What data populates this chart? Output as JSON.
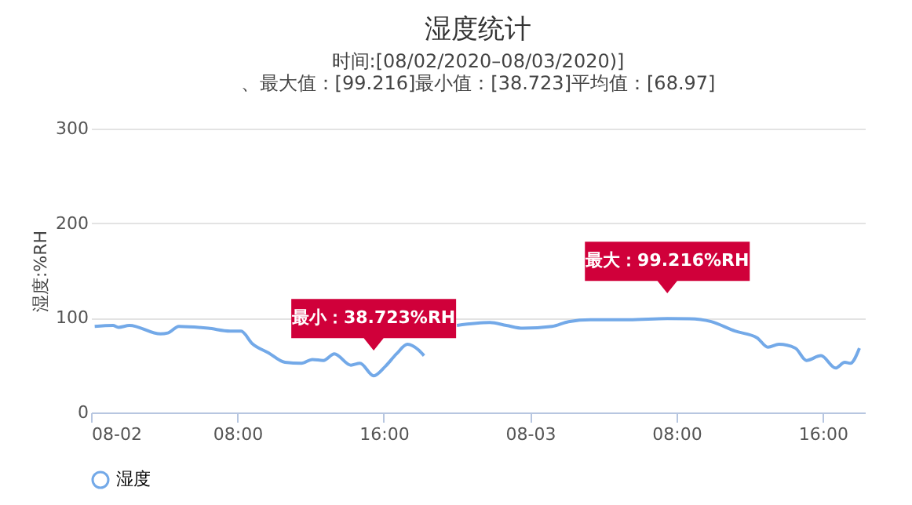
{
  "chart_data": {
    "type": "line",
    "title": "湿度统计",
    "subtitle": "时间:[08/02/2020–08/03/2020)]\n、最大值：[99.216]最小值：[38.723]平均值：[68.97]",
    "ylabel": "湿度:%RH",
    "x": [
      "2020-08-02T00:12",
      "2020-08-02T01:12",
      "2020-08-02T01:30",
      "2020-08-02T02:06",
      "2020-08-02T03:48",
      "2020-08-02T04:12",
      "2020-08-02T04:48",
      "2020-08-02T06:24",
      "2020-08-02T07:36",
      "2020-08-02T08:12",
      "2020-08-02T08:48",
      "2020-08-02T09:42",
      "2020-08-02T10:36",
      "2020-08-02T11:30",
      "2020-08-02T12:06",
      "2020-08-02T12:42",
      "2020-08-02T13:18",
      "2020-08-02T14:12",
      "2020-08-02T14:42",
      "2020-08-02T15:27",
      "2020-08-02T16:06",
      "2020-08-02T16:42",
      "2020-08-02T17:18",
      "2020-08-02T17:54",
      "2020-08-02T18:12",
      "2020-08-02T18:48",
      "2020-08-02T20:00",
      "2020-08-02T21:48",
      "2020-08-02T22:42",
      "2020-08-02T23:36",
      "2020-08-03T01:12",
      "2020-08-03T02:06",
      "2020-08-03T03:18",
      "2020-08-03T04:12",
      "2020-08-03T05:24",
      "2020-08-03T07:30",
      "2020-08-03T08:42",
      "2020-08-03T09:54",
      "2020-08-03T11:12",
      "2020-08-03T12:24",
      "2020-08-03T13:00",
      "2020-08-03T13:36",
      "2020-08-03T14:30",
      "2020-08-03T15:06",
      "2020-08-03T15:54",
      "2020-08-03T16:42",
      "2020-08-03T17:12",
      "2020-08-03T17:30",
      "2020-08-03T18:00"
    ],
    "series": [
      {
        "name": "湿度",
        "color": "#73a9e8",
        "values": [
          91,
          92,
          90,
          92,
          83,
          84,
          91,
          89,
          86,
          86,
          73,
          63,
          53,
          52,
          56,
          55,
          62,
          50,
          52,
          38.723,
          49,
          62,
          72,
          66,
          60,
          null,
          92,
          95,
          92,
          89,
          91,
          96,
          98,
          98,
          98,
          99.216,
          99,
          96,
          86,
          79,
          69,
          72,
          68,
          55,
          60,
          47,
          53,
          52,
          68
        ]
      }
    ],
    "xlim": [
      "2020-08-02T00:00",
      "2020-08-03T18:18"
    ],
    "xticks": [
      {
        "value": "2020-08-02T00:00",
        "label": "08-02"
      },
      {
        "value": "2020-08-02T08:00",
        "label": "08:00"
      },
      {
        "value": "2020-08-02T16:00",
        "label": "16:00"
      },
      {
        "value": "2020-08-03T00:00",
        "label": "08-03"
      },
      {
        "value": "2020-08-03T08:00",
        "label": "08:00"
      },
      {
        "value": "2020-08-03T16:00",
        "label": "16:00"
      }
    ],
    "ylim": [
      0,
      300
    ],
    "yticks": [
      0,
      100,
      200,
      300
    ],
    "grid": "y",
    "legend": "bottom",
    "marker": "none",
    "line_style": "solid",
    "annotations": [
      {
        "text": "最小：38.723%RH",
        "x": "2020-08-02T15:27",
        "y": 38.723
      },
      {
        "text": "最大：99.216%RH",
        "x": "2020-08-03T07:30",
        "y": 99.216
      }
    ]
  }
}
